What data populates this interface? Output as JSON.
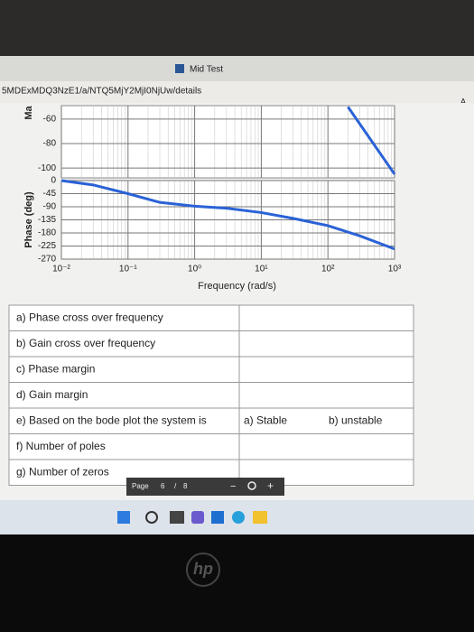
{
  "window_title": "Mid Test",
  "url": "5MDExMDQ3NzE1/a/NTQ5MjY2MjI0NjUw/details",
  "font_button": "A",
  "chart_data": [
    {
      "type": "line",
      "y_label": "Ma",
      "x": [
        200,
        1000
      ],
      "values": [
        -50,
        -105
      ],
      "color": "#2a62d6",
      "xlim": [
        0.01,
        1000
      ],
      "log_x": true,
      "ylim": [
        -108,
        -49
      ],
      "yticks": [
        -60,
        -80,
        -100
      ],
      "grid": true
    },
    {
      "type": "line",
      "y_label": "Phase (deg)",
      "x_label": "Frequency (rad/s)",
      "x": [
        0.01,
        0.03,
        0.1,
        0.3,
        1,
        3,
        10,
        30,
        100,
        300,
        1000
      ],
      "values": [
        0,
        -15,
        -45,
        -75,
        -88,
        -95,
        -110,
        -130,
        -155,
        -190,
        -235
      ],
      "color": "#2a62d6",
      "xlim": [
        0.01,
        1000
      ],
      "log_x": true,
      "xticks": [
        {
          "value": 0.01,
          "label": "10⁻²"
        },
        {
          "value": 0.1,
          "label": "10⁻¹"
        },
        {
          "value": 1,
          "label": "10⁰"
        },
        {
          "value": 10,
          "label": "10¹"
        },
        {
          "value": 100,
          "label": "10²"
        },
        {
          "value": 1000,
          "label": "10³"
        }
      ],
      "ylim": [
        -270,
        0
      ],
      "yticks": [
        0,
        -45,
        -90,
        -135,
        -180,
        -225,
        -270
      ],
      "grid": true
    }
  ],
  "table": {
    "rows": [
      [
        "a) Phase cross over frequency"
      ],
      [
        "b) Gain cross over frequency"
      ],
      [
        "c) Phase margin"
      ],
      [
        "d) Gain margin"
      ],
      [
        "e) Based on the bode plot the system is",
        "a) Stable",
        "b) unstable"
      ],
      [
        "f) Number of poles"
      ],
      [
        "g) Number of zeros"
      ]
    ]
  },
  "pager": {
    "label": "Page",
    "current": "6",
    "separator": "/",
    "total": "8",
    "zoom_out": "−",
    "zoom_in": "+"
  },
  "logo": "hp"
}
